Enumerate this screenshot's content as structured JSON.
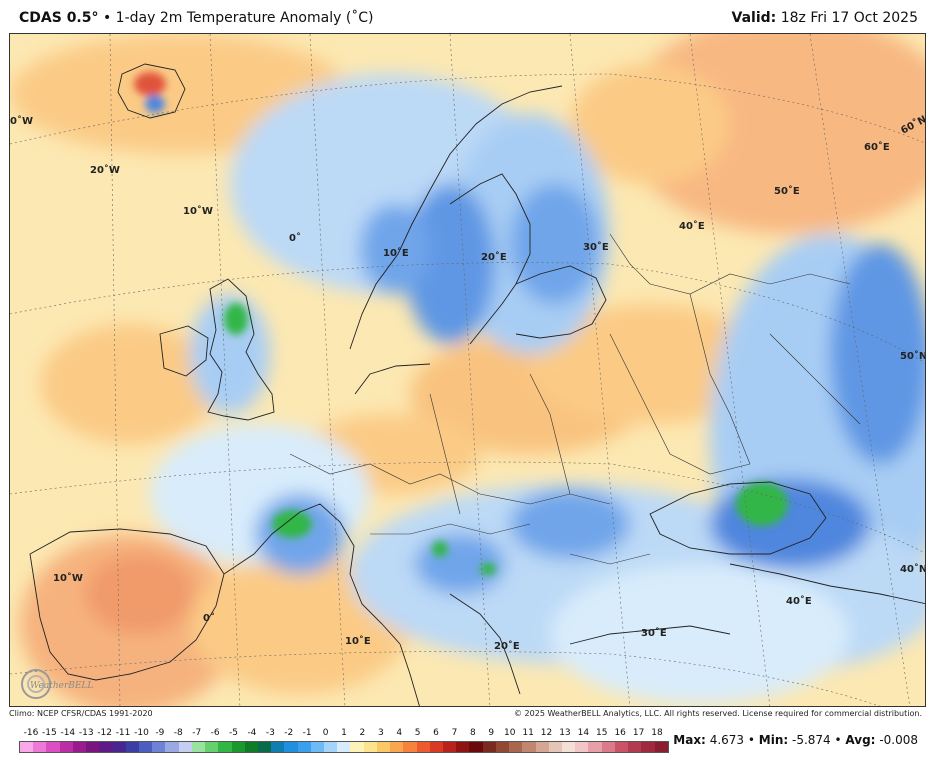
{
  "header": {
    "product": "CDAS 0.5°",
    "bullet": " • ",
    "field": "1-day 2m Temperature Anomaly (˚C)",
    "valid_label": "Valid:",
    "valid_time": "18z Fri 17 Oct 2025"
  },
  "map": {
    "grid_labels": {
      "w30": "0˚W",
      "w20": "20˚W",
      "w10a": "10˚W",
      "zero_a": "0˚",
      "e10a": "10˚E",
      "e20a": "20˚E",
      "e30a": "30˚E",
      "e40a": "40˚E",
      "e50": "50˚E",
      "e60": "60˚E",
      "n60": "60˚N",
      "n50": "50˚N",
      "n40": "40˚N",
      "e40b": "40˚E",
      "e30b": "30˚E",
      "w10b": "10˚W",
      "zero_b": "0˚",
      "e10b": "10˚E",
      "e20b": "20˚E"
    },
    "logo_text": "WeatherBELL"
  },
  "footer": {
    "climo": "Climo: NCEP CFSR/CDAS 1991-2020",
    "copyright": "© 2025 WeatherBELL Analytics, LLC. All rights reserved. License required for commercial distribution."
  },
  "colorbar": {
    "ticks": [
      "-16",
      "-15",
      "-14",
      "-13",
      "-12",
      "-11",
      "-10",
      "-9",
      "-8",
      "-7",
      "-6",
      "-5",
      "-4",
      "-3",
      "-2",
      "-1",
      "0",
      "1",
      "2",
      "3",
      "4",
      "5",
      "6",
      "7",
      "8",
      "9",
      "10",
      "11",
      "12",
      "13",
      "14",
      "15",
      "16",
      "17",
      "18"
    ],
    "colors": [
      "#f9a8e8",
      "#ee7ad8",
      "#dc4fc4",
      "#bb2ea8",
      "#981c8d",
      "#7a1580",
      "#5e1a86",
      "#47278f",
      "#3b3ea3",
      "#4c5fc0",
      "#6e82d6",
      "#9aa8e4",
      "#c5cdf0",
      "#9ae2a0",
      "#63d16e",
      "#32b646",
      "#1a9a2e",
      "#0f7d26",
      "#0a6a4c",
      "#0e7fb0",
      "#1f8fe0",
      "#3aa0ee",
      "#6cbaf6",
      "#a4d4fa",
      "#d6ecfc",
      "#fdf3b8",
      "#fce38c",
      "#fbc866",
      "#f9a74e",
      "#f6823e",
      "#ec5a2e",
      "#d83a24",
      "#b8221c",
      "#8f1313",
      "#6b0a0a",
      "#7a2a1e",
      "#934834",
      "#ab6650",
      "#c1866f",
      "#d5a692",
      "#e6c4b6",
      "#f3dfd6",
      "#f2c6c6",
      "#e8a0a8",
      "#db7a8a",
      "#c95468",
      "#b43a50",
      "#9f2a3e",
      "#8a1e2e"
    ],
    "max_label": "Max:",
    "max_value": "4.673",
    "min_label": "Min:",
    "min_value": "-5.874",
    "avg_label": "Avg:",
    "avg_value": "-0.008",
    "sep": " • "
  }
}
